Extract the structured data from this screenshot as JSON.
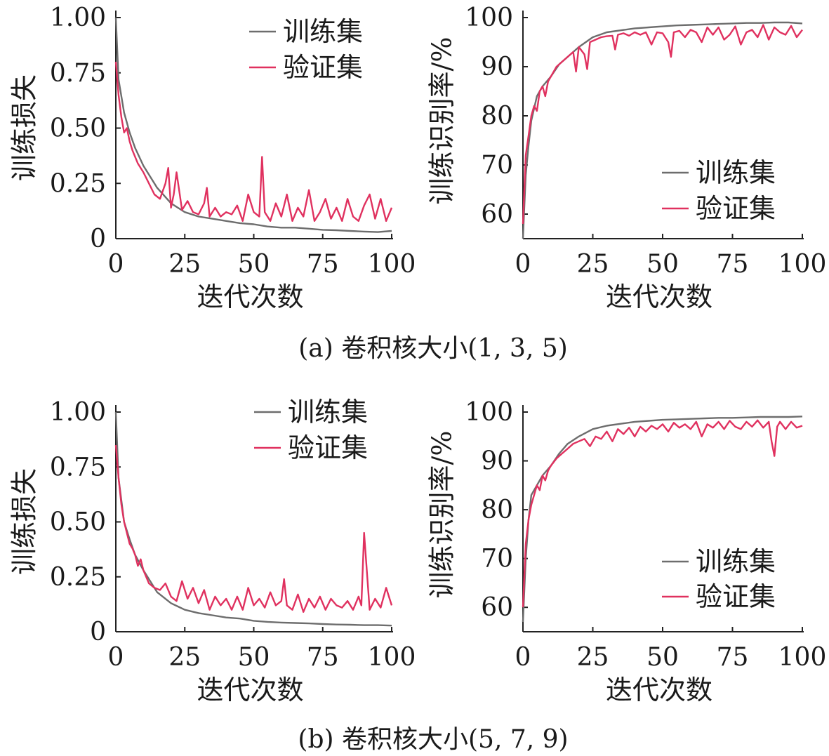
{
  "captions": {
    "a": "(a) 卷积核大小(1, 3, 5)",
    "b": "(b) 卷积核大小(5, 7, 9)"
  },
  "colors": {
    "train": "#6d6d6d",
    "val": "#e0315f",
    "axis": "#222222"
  },
  "chart_data": [
    {
      "id": "a-loss",
      "type": "line",
      "xlabel": "迭代次数",
      "ylabel": "训练损失",
      "xlim": [
        0,
        100
      ],
      "ylim": [
        0,
        1.0
      ],
      "xticks": [
        "0",
        "25",
        "50",
        "75",
        "100"
      ],
      "yticks": [
        "0",
        "0.25",
        "0.50",
        "0.75",
        "1.00"
      ],
      "legend_position": "top-right",
      "series": [
        {
          "name": "训练集",
          "color": "#6d6d6d",
          "x": [
            0,
            1,
            3,
            5,
            7,
            10,
            15,
            20,
            25,
            30,
            35,
            40,
            45,
            50,
            55,
            60,
            65,
            70,
            75,
            80,
            85,
            90,
            95,
            100
          ],
          "y": [
            1.0,
            0.72,
            0.57,
            0.48,
            0.41,
            0.33,
            0.23,
            0.16,
            0.12,
            0.1,
            0.09,
            0.08,
            0.07,
            0.065,
            0.055,
            0.05,
            0.05,
            0.045,
            0.04,
            0.038,
            0.035,
            0.032,
            0.03,
            0.035
          ]
        },
        {
          "name": "验证集",
          "color": "#e0315f",
          "x": [
            0,
            1,
            2,
            3,
            4,
            5,
            6,
            8,
            10,
            12,
            14,
            16,
            18,
            19,
            20,
            21,
            22,
            24,
            26,
            28,
            30,
            32,
            33,
            34,
            36,
            38,
            40,
            42,
            44,
            46,
            48,
            50,
            52,
            53,
            54,
            56,
            58,
            60,
            62,
            64,
            66,
            68,
            70,
            72,
            74,
            76,
            78,
            80,
            82,
            84,
            86,
            88,
            90,
            92,
            94,
            96,
            98,
            100
          ],
          "y": [
            0.8,
            0.65,
            0.55,
            0.48,
            0.5,
            0.44,
            0.4,
            0.34,
            0.3,
            0.25,
            0.2,
            0.18,
            0.25,
            0.32,
            0.14,
            0.2,
            0.3,
            0.13,
            0.17,
            0.12,
            0.11,
            0.16,
            0.23,
            0.1,
            0.14,
            0.1,
            0.12,
            0.11,
            0.15,
            0.08,
            0.2,
            0.12,
            0.1,
            0.37,
            0.12,
            0.08,
            0.16,
            0.1,
            0.2,
            0.08,
            0.14,
            0.1,
            0.22,
            0.08,
            0.12,
            0.18,
            0.09,
            0.14,
            0.08,
            0.18,
            0.1,
            0.08,
            0.15,
            0.2,
            0.09,
            0.18,
            0.08,
            0.14
          ]
        }
      ]
    },
    {
      "id": "a-acc",
      "type": "line",
      "xlabel": "迭代次数",
      "ylabel": "训练识别率/%",
      "xlim": [
        0,
        100
      ],
      "ylim": [
        55,
        100
      ],
      "xticks": [
        "0",
        "25",
        "50",
        "75",
        "100"
      ],
      "yticks": [
        "60",
        "70",
        "80",
        "90",
        "100"
      ],
      "legend_position": "bottom-right",
      "series": [
        {
          "name": "训练集",
          "color": "#6d6d6d",
          "x": [
            0,
            1,
            2,
            3,
            5,
            7,
            10,
            13,
            16,
            20,
            25,
            30,
            35,
            40,
            45,
            50,
            55,
            60,
            65,
            70,
            75,
            80,
            85,
            90,
            95,
            100
          ],
          "y": [
            55,
            68,
            74,
            79,
            84,
            86,
            88,
            90.5,
            92,
            94,
            96,
            97,
            97.4,
            97.8,
            98,
            98.2,
            98.4,
            98.5,
            98.6,
            98.7,
            98.8,
            98.9,
            98.9,
            99,
            99,
            98.8
          ]
        },
        {
          "name": "验证集",
          "color": "#e0315f",
          "x": [
            0,
            1,
            2,
            3,
            4,
            5,
            6,
            7,
            8,
            9,
            10,
            12,
            14,
            16,
            18,
            19,
            20,
            22,
            23,
            24,
            26,
            28,
            30,
            32,
            33,
            34,
            36,
            38,
            40,
            42,
            44,
            46,
            48,
            50,
            52,
            53,
            54,
            56,
            58,
            60,
            62,
            64,
            66,
            68,
            70,
            72,
            74,
            76,
            78,
            80,
            82,
            84,
            86,
            88,
            90,
            92,
            94,
            96,
            98,
            100
          ],
          "y": [
            58,
            72,
            76,
            80,
            82,
            81,
            85,
            86,
            84,
            87,
            88,
            90,
            91,
            92,
            93,
            89,
            94,
            92.5,
            89.5,
            95,
            95.5,
            96,
            96.2,
            96.3,
            93.5,
            96.5,
            96.8,
            96.3,
            97,
            96.5,
            97,
            94.5,
            97,
            96.8,
            95,
            92,
            97,
            97.3,
            96,
            97.5,
            97,
            95,
            98,
            96.5,
            98,
            95.5,
            96.5,
            98.2,
            94.5,
            97,
            97.5,
            96,
            98.5,
            95.5,
            98,
            97,
            96.5,
            98.3,
            96,
            97.5
          ]
        }
      ]
    },
    {
      "id": "b-loss",
      "type": "line",
      "xlabel": "迭代次数",
      "ylabel": "训练损失",
      "xlim": [
        0,
        100
      ],
      "ylim": [
        0,
        1.0
      ],
      "xticks": [
        "0",
        "25",
        "50",
        "75",
        "100"
      ],
      "yticks": [
        "0",
        "0.25",
        "0.50",
        "0.75",
        "1.00"
      ],
      "legend_position": "top-right",
      "series": [
        {
          "name": "训练集",
          "color": "#6d6d6d",
          "x": [
            0,
            1,
            3,
            5,
            7,
            10,
            15,
            20,
            25,
            30,
            35,
            40,
            45,
            50,
            55,
            60,
            65,
            70,
            75,
            80,
            85,
            90,
            95,
            100
          ],
          "y": [
            1.0,
            0.7,
            0.5,
            0.42,
            0.35,
            0.28,
            0.18,
            0.13,
            0.1,
            0.085,
            0.075,
            0.065,
            0.06,
            0.05,
            0.045,
            0.042,
            0.04,
            0.038,
            0.035,
            0.033,
            0.032,
            0.03,
            0.03,
            0.028
          ]
        },
        {
          "name": "验证集",
          "color": "#e0315f",
          "x": [
            0,
            1,
            2,
            3,
            4,
            5,
            6,
            7,
            8,
            9,
            10,
            12,
            14,
            16,
            18,
            20,
            22,
            24,
            26,
            28,
            30,
            32,
            34,
            36,
            38,
            40,
            42,
            44,
            46,
            48,
            50,
            52,
            54,
            56,
            58,
            60,
            61,
            62,
            64,
            66,
            68,
            70,
            72,
            74,
            76,
            78,
            80,
            82,
            84,
            86,
            88,
            89,
            90,
            92,
            94,
            96,
            98,
            100
          ],
          "y": [
            0.85,
            0.7,
            0.58,
            0.5,
            0.45,
            0.4,
            0.38,
            0.35,
            0.3,
            0.33,
            0.28,
            0.22,
            0.2,
            0.19,
            0.22,
            0.16,
            0.14,
            0.23,
            0.15,
            0.2,
            0.13,
            0.19,
            0.1,
            0.16,
            0.12,
            0.15,
            0.1,
            0.16,
            0.1,
            0.2,
            0.12,
            0.15,
            0.11,
            0.18,
            0.12,
            0.14,
            0.24,
            0.12,
            0.1,
            0.17,
            0.09,
            0.15,
            0.11,
            0.16,
            0.1,
            0.15,
            0.12,
            0.11,
            0.14,
            0.1,
            0.16,
            0.12,
            0.45,
            0.1,
            0.15,
            0.11,
            0.2,
            0.12
          ]
        }
      ]
    },
    {
      "id": "b-acc",
      "type": "line",
      "xlabel": "迭代次数",
      "ylabel": "训练识别率/%",
      "xlim": [
        0,
        100
      ],
      "ylim": [
        55,
        100
      ],
      "xticks": [
        "0",
        "25",
        "50",
        "75",
        "100"
      ],
      "yticks": [
        "60",
        "70",
        "80",
        "90",
        "100"
      ],
      "legend_position": "bottom-right",
      "series": [
        {
          "name": "训练集",
          "color": "#6d6d6d",
          "x": [
            0,
            1,
            2,
            3,
            5,
            7,
            10,
            13,
            16,
            20,
            25,
            30,
            35,
            40,
            45,
            50,
            55,
            60,
            65,
            70,
            75,
            80,
            85,
            90,
            95,
            100
          ],
          "y": [
            57,
            70,
            78,
            83,
            85,
            87,
            89,
            91.5,
            93.5,
            95,
            96.5,
            97.2,
            97.6,
            98,
            98.2,
            98.4,
            98.5,
            98.6,
            98.7,
            98.8,
            98.8,
            98.9,
            99,
            99,
            99,
            99.1
          ]
        },
        {
          "name": "验证集",
          "color": "#e0315f",
          "x": [
            0,
            1,
            2,
            3,
            4,
            5,
            6,
            7,
            8,
            9,
            10,
            12,
            14,
            16,
            18,
            20,
            22,
            24,
            26,
            28,
            30,
            32,
            34,
            36,
            38,
            40,
            42,
            44,
            46,
            48,
            50,
            52,
            54,
            56,
            58,
            60,
            62,
            64,
            66,
            68,
            70,
            72,
            74,
            76,
            78,
            80,
            82,
            84,
            86,
            88,
            89,
            90,
            91,
            92,
            94,
            96,
            98,
            100
          ],
          "y": [
            60,
            73,
            78,
            81,
            83,
            85,
            84,
            87,
            86,
            88,
            89,
            90.5,
            91.5,
            92.5,
            93.5,
            94,
            94.5,
            93,
            95,
            94.5,
            96,
            94,
            96.5,
            95.5,
            96.8,
            95,
            97,
            96,
            97.2,
            96.5,
            97.5,
            96,
            97.8,
            96.8,
            97.5,
            96.5,
            98,
            95,
            97.5,
            96.8,
            98,
            96.5,
            98.2,
            97,
            96.5,
            98,
            97,
            98.3,
            96.8,
            98,
            94,
            91,
            97,
            98,
            96.5,
            98,
            96.8,
            97.2
          ]
        }
      ]
    }
  ]
}
